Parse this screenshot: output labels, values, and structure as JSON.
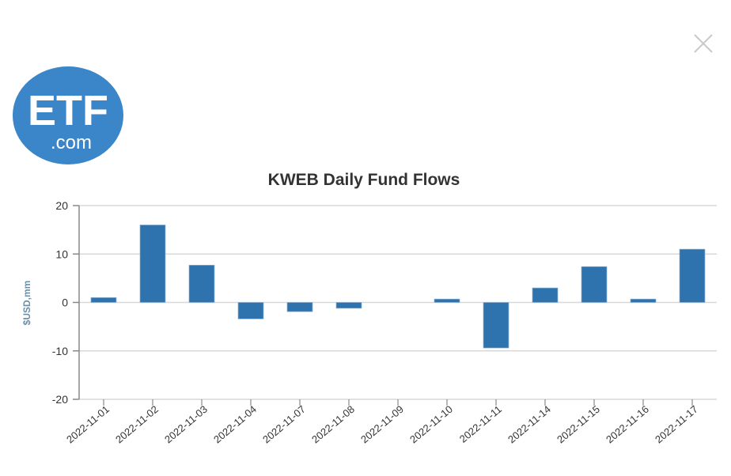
{
  "logo": {
    "text_main": "ETF",
    "text_sub": ".com",
    "color": "#3a86c8"
  },
  "close_icon": "close-icon",
  "chart_data": {
    "type": "bar",
    "title": "KWEB Daily Fund Flows",
    "xlabel": "",
    "ylabel": "$USD,mm",
    "ylim": [
      -20,
      20
    ],
    "yticks": [
      20,
      10,
      0,
      -10,
      -20
    ],
    "grid": true,
    "bar_color": "#2e72ae",
    "categories": [
      "2022-11-01",
      "2022-11-02",
      "2022-11-03",
      "2022-11-04",
      "2022-11-07",
      "2022-11-08",
      "2022-11-09",
      "2022-11-10",
      "2022-11-11",
      "2022-11-14",
      "2022-11-15",
      "2022-11-16",
      "2022-11-17"
    ],
    "values": [
      1.0,
      16.0,
      7.7,
      -3.4,
      -1.9,
      -1.2,
      0,
      0.7,
      -9.4,
      3.0,
      7.4,
      0.7,
      11.0
    ]
  }
}
